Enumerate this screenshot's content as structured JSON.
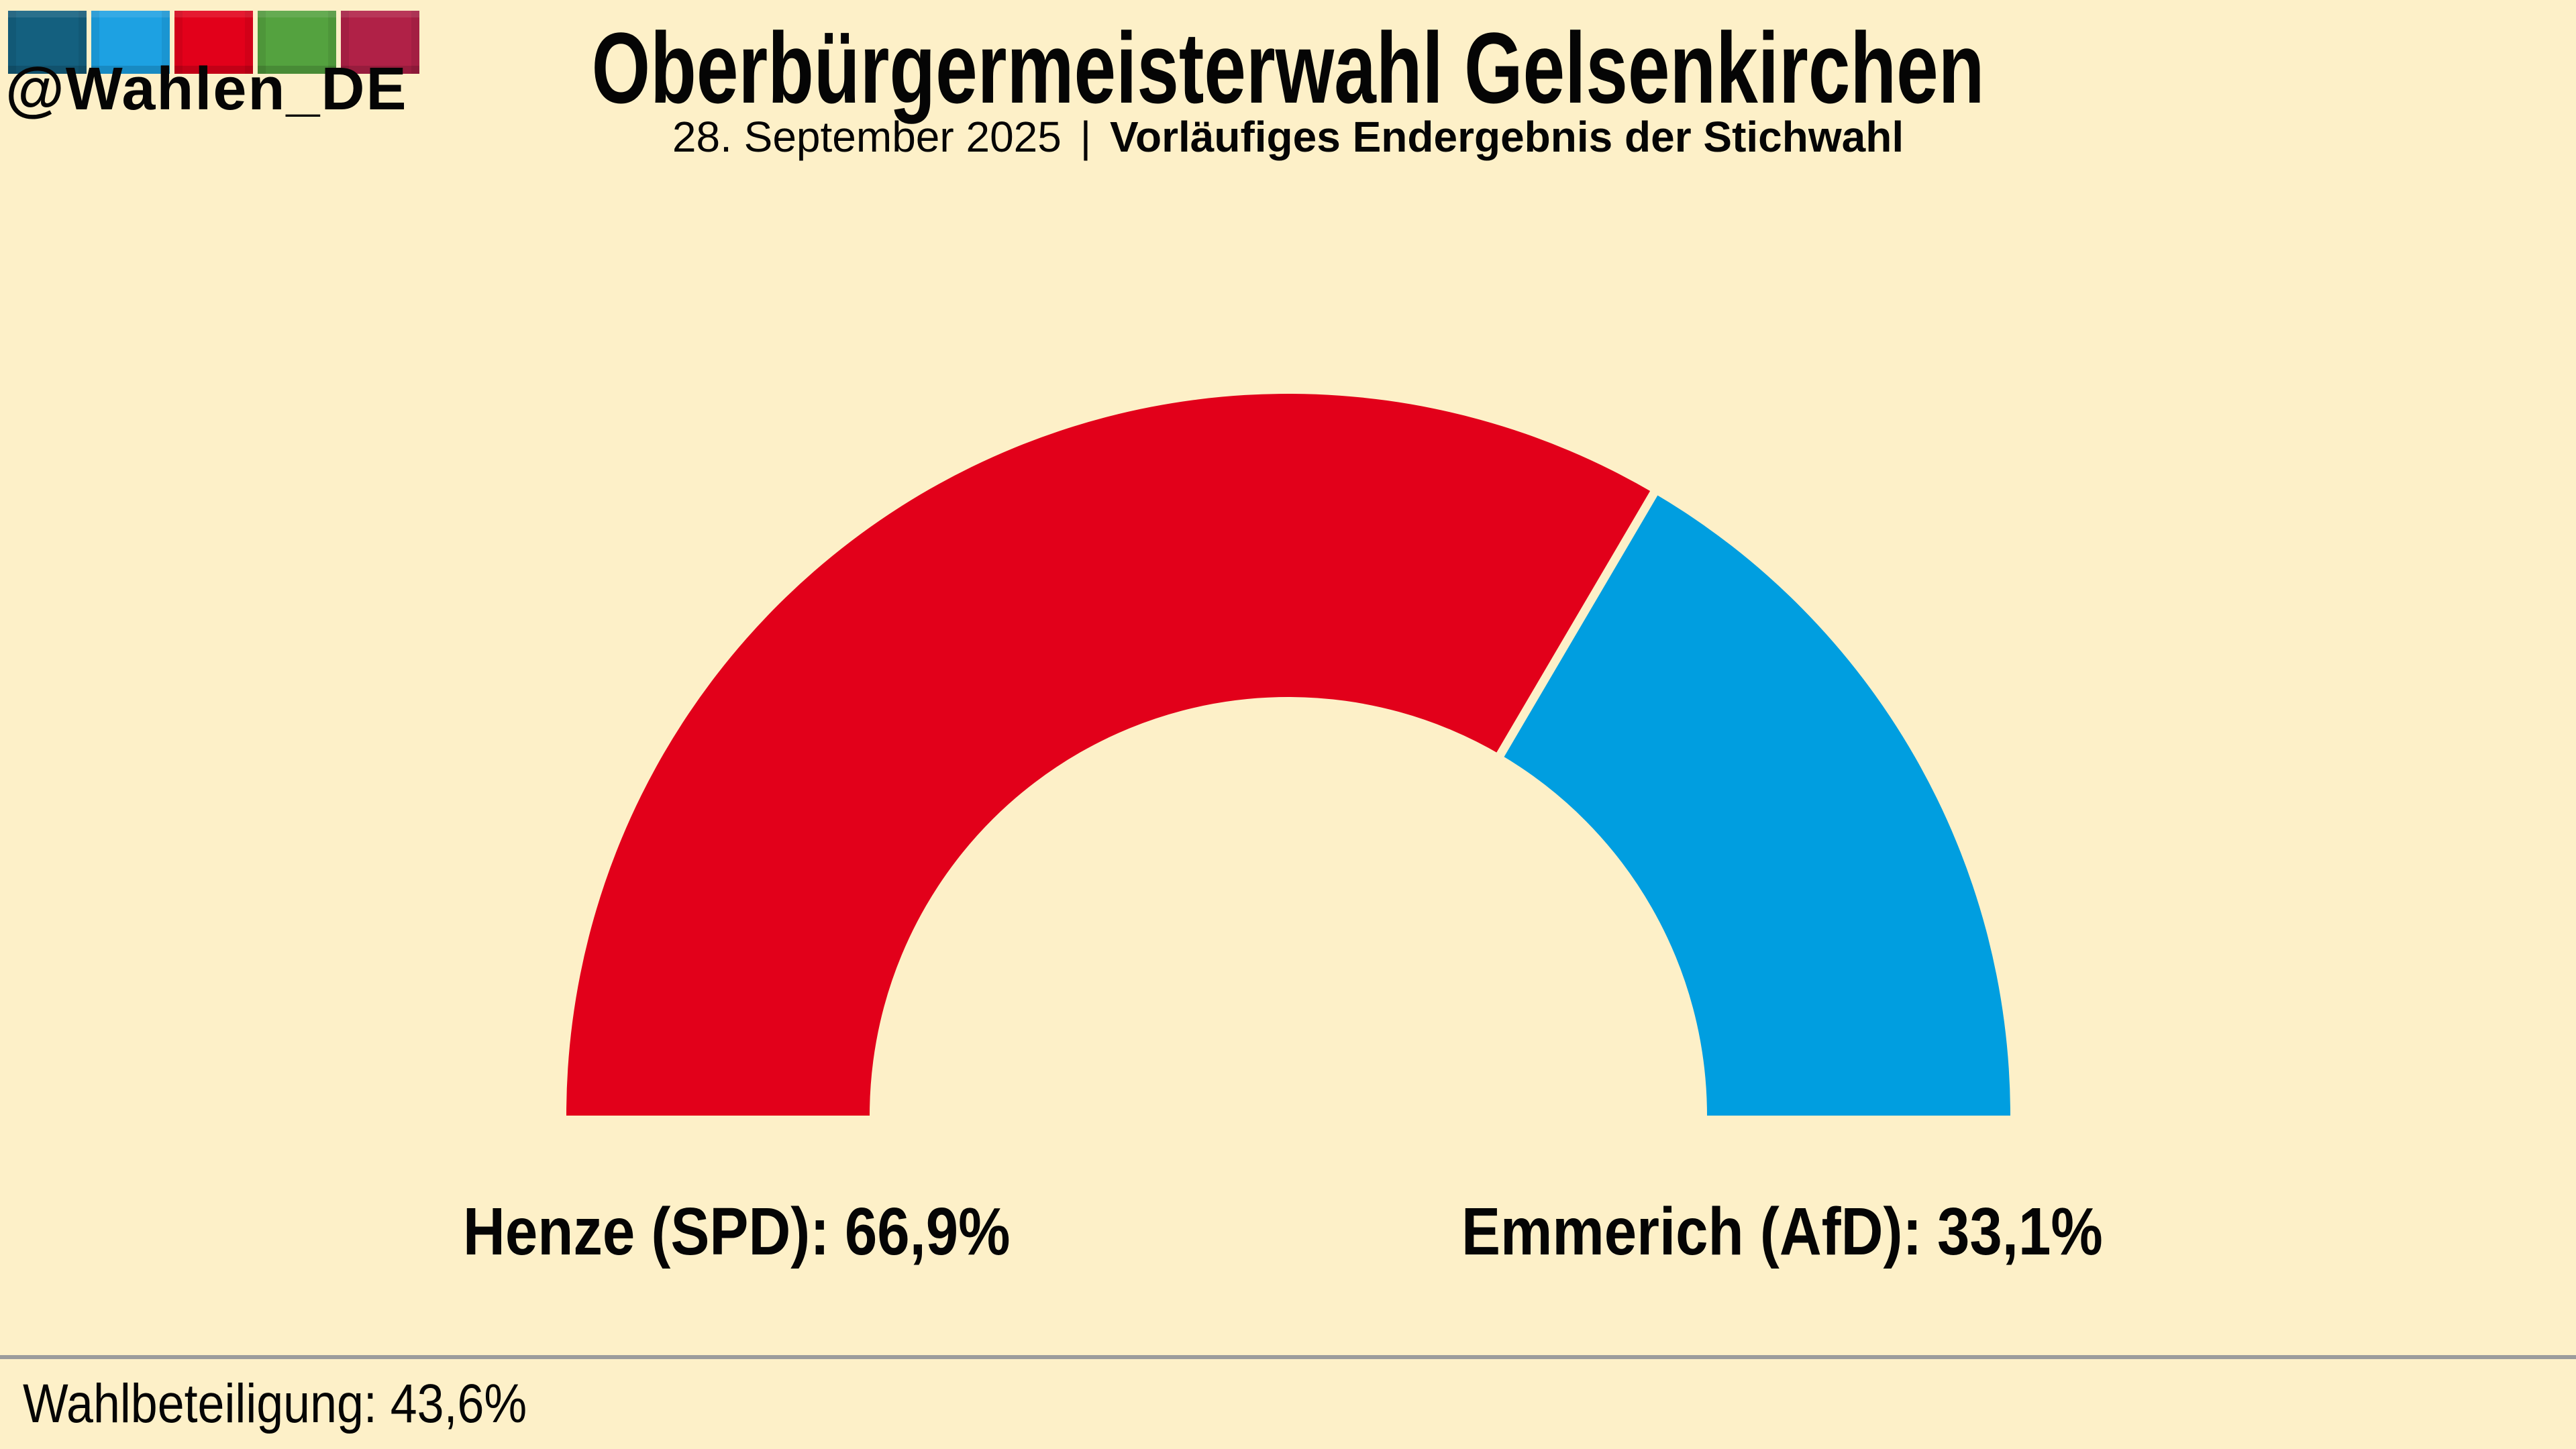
{
  "page": {
    "background": "#fdf0c8",
    "divider_color": "#9c9c9c",
    "text_color": "#050505"
  },
  "logo": {
    "handle": "@Wahlen_DE",
    "squares": [
      {
        "name": "teal-square",
        "color": "#14607f"
      },
      {
        "name": "blue-square",
        "color": "#1da1e2"
      },
      {
        "name": "red-square",
        "color": "#e2001a"
      },
      {
        "name": "green-square",
        "color": "#54a23f"
      },
      {
        "name": "crimson-square",
        "color": "#b02147"
      }
    ]
  },
  "header": {
    "title": "Oberbürgermeisterwahl Gelsenkirchen",
    "subtitle_date": "28. September 2025",
    "subtitle_separator": "|",
    "subtitle_result": "Vorläufiges Endergebnis der Stichwahl"
  },
  "chart_data": {
    "type": "pie",
    "variant": "half-donut-gauge",
    "title": "Oberbürgermeisterwahl Gelsenkirchen",
    "subtitle": "28. September 2025 | Vorläufiges Endergebnis der Stichwahl",
    "total_degrees": 180,
    "start_side": "left",
    "legend_position": "below",
    "series": [
      {
        "name": "Henze (SPD)",
        "label": "Henze (SPD):",
        "value": 66.9,
        "value_label": "66,9%",
        "color": "#e2001a"
      },
      {
        "name": "Emmerich (AfD)",
        "label": "Emmerich (AfD):",
        "value": 33.1,
        "value_label": "33,1%",
        "color": "#009ee0"
      }
    ],
    "annotations": [
      "Wahlbeteiligung: 43,6%"
    ]
  },
  "footer": {
    "turnout_label": "Wahlbeteiligung: 43,6%"
  }
}
